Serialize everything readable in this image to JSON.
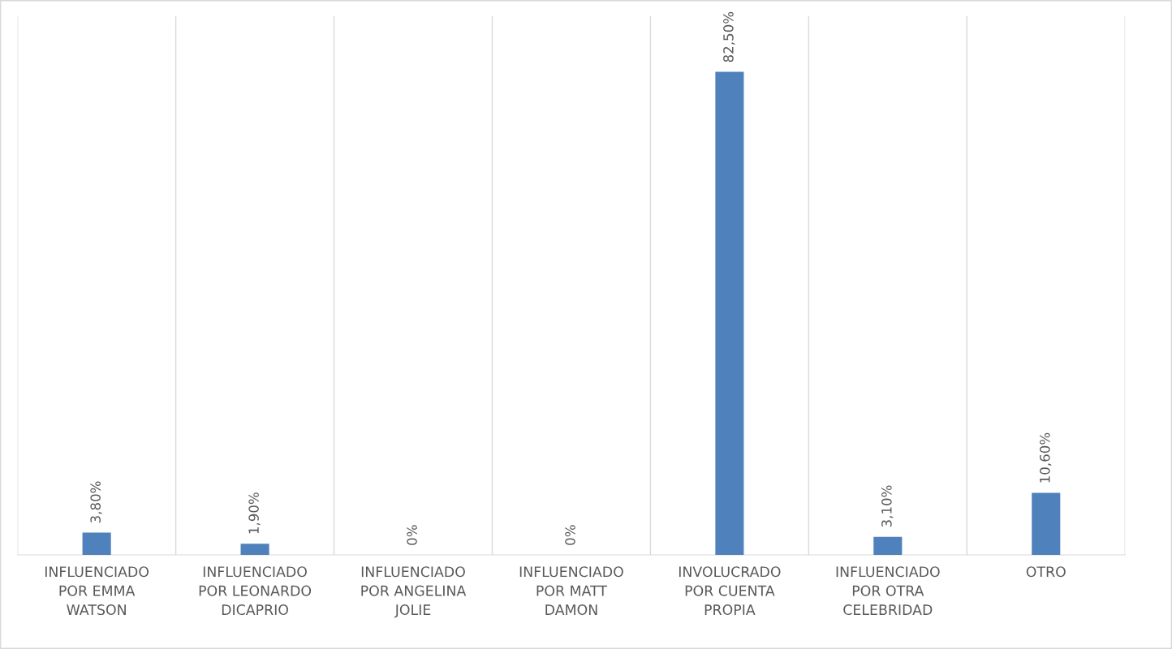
{
  "chart_data": {
    "type": "bar",
    "categories": [
      "INFLUENCIADO POR EMMA WATSON",
      "INFLUENCIADO POR LEONARDO DICAPRIO",
      "INFLUENCIADO POR ANGELINA JOLIE",
      "INFLUENCIADO POR MATT DAMON",
      "INVOLUCRADO POR CUENTA PROPIA",
      "INFLUENCIADO POR OTRA CELEBRIDAD",
      "OTRO"
    ],
    "values": [
      3.8,
      1.9,
      0,
      0,
      82.5,
      3.1,
      10.6
    ],
    "value_labels": [
      "3,80%",
      "1,90%",
      "0%",
      "0%",
      "82,50%",
      "3,10%",
      "10,60%"
    ],
    "color": "#4f81bd",
    "ylim": [
      0,
      92
    ],
    "grid": "x",
    "legend": false,
    "tick_labels": "x"
  }
}
